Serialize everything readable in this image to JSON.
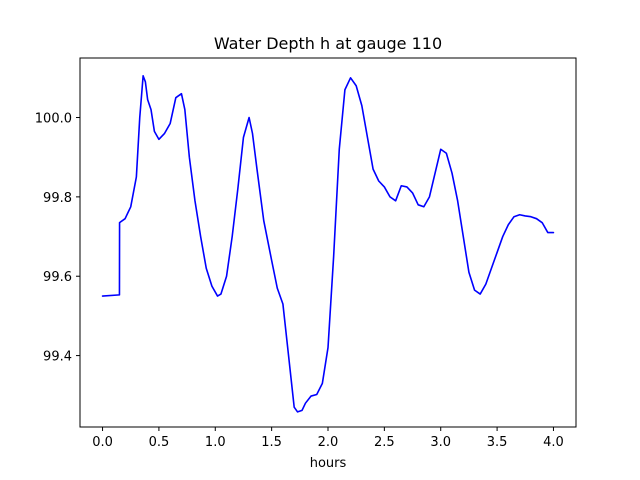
{
  "chart_data": {
    "type": "line",
    "title": "Water Depth h at gauge 110",
    "xlabel": "hours",
    "ylabel": "",
    "xlim": [
      -0.2,
      4.2
    ],
    "ylim": [
      99.22,
      100.15
    ],
    "x_ticks": [
      0.0,
      0.5,
      1.0,
      1.5,
      2.0,
      2.5,
      3.0,
      3.5,
      4.0
    ],
    "x_tick_labels": [
      "0.0",
      "0.5",
      "1.0",
      "1.5",
      "2.0",
      "2.5",
      "3.0",
      "3.5",
      "4.0"
    ],
    "y_ticks": [
      99.4,
      99.6,
      99.8,
      100.0
    ],
    "y_tick_labels": [
      "99.4",
      "99.6",
      "99.8",
      "100.0"
    ],
    "grid": false,
    "line_color": "#0000ff",
    "series": [
      {
        "x": [
          0.0,
          0.15,
          0.151,
          0.2,
          0.25,
          0.3,
          0.33,
          0.36,
          0.38,
          0.4,
          0.43,
          0.46,
          0.5,
          0.55,
          0.6,
          0.65,
          0.7,
          0.73,
          0.77,
          0.82,
          0.87,
          0.92,
          0.97,
          1.02,
          1.05,
          1.1,
          1.15,
          1.2,
          1.25,
          1.3,
          1.33,
          1.37,
          1.43,
          1.5,
          1.55,
          1.6,
          1.65,
          1.7,
          1.73,
          1.77,
          1.8,
          1.85,
          1.9,
          1.95,
          2.0,
          2.05,
          2.1,
          2.15,
          2.2,
          2.25,
          2.3,
          2.35,
          2.4,
          2.45,
          2.5,
          2.55,
          2.6,
          2.65,
          2.7,
          2.75,
          2.8,
          2.85,
          2.9,
          2.95,
          3.0,
          3.05,
          3.1,
          3.15,
          3.2,
          3.25,
          3.3,
          3.35,
          3.4,
          3.45,
          3.5,
          3.55,
          3.6,
          3.65,
          3.7,
          3.75,
          3.8,
          3.85,
          3.9,
          3.95,
          4.0
        ],
        "y": [
          99.55,
          99.553,
          99.735,
          99.745,
          99.775,
          99.85,
          100.0,
          100.105,
          100.09,
          100.045,
          100.02,
          99.965,
          99.945,
          99.96,
          99.985,
          100.05,
          100.06,
          100.02,
          99.9,
          99.79,
          99.7,
          99.62,
          99.575,
          99.55,
          99.555,
          99.6,
          99.7,
          99.82,
          99.95,
          100.0,
          99.96,
          99.87,
          99.74,
          99.64,
          99.57,
          99.53,
          99.4,
          99.27,
          99.258,
          99.262,
          99.28,
          99.298,
          99.302,
          99.33,
          99.42,
          99.65,
          99.92,
          100.07,
          100.1,
          100.08,
          100.03,
          99.95,
          99.87,
          99.84,
          99.825,
          99.8,
          99.79,
          99.828,
          99.825,
          99.81,
          99.78,
          99.775,
          99.8,
          99.86,
          99.92,
          99.91,
          99.86,
          99.79,
          99.7,
          99.61,
          99.565,
          99.555,
          99.58,
          99.62,
          99.66,
          99.7,
          99.73,
          99.75,
          99.755,
          99.752,
          99.75,
          99.745,
          99.735,
          99.71,
          99.71
        ]
      }
    ]
  }
}
